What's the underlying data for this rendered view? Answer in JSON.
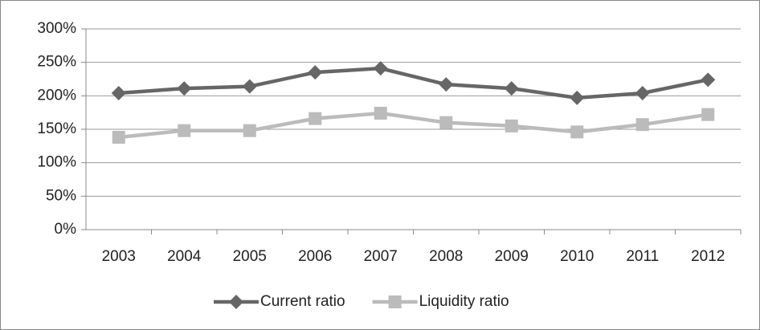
{
  "chart_data": {
    "type": "line",
    "categories": [
      "2003",
      "2004",
      "2005",
      "2006",
      "2007",
      "2008",
      "2009",
      "2010",
      "2011",
      "2012"
    ],
    "series": [
      {
        "name": "Current ratio",
        "color": "#666666",
        "marker": "diamond",
        "values": [
          204,
          211,
          214,
          235,
          241,
          217,
          211,
          197,
          204,
          224
        ]
      },
      {
        "name": "Liquidity ratio",
        "color": "#bbbbbb",
        "marker": "square",
        "values": [
          138,
          148,
          148,
          166,
          174,
          160,
          155,
          146,
          157,
          172
        ]
      }
    ],
    "ylim": [
      0,
      300
    ],
    "yticks": [
      {
        "value": 0,
        "label": "0%"
      },
      {
        "value": 50,
        "label": "50%"
      },
      {
        "value": 100,
        "label": "100%"
      },
      {
        "value": 150,
        "label": "150%"
      },
      {
        "value": 200,
        "label": "200%"
      },
      {
        "value": 250,
        "label": "250%"
      },
      {
        "value": 300,
        "label": "300%"
      }
    ],
    "grid": true,
    "legend": "bottom"
  }
}
